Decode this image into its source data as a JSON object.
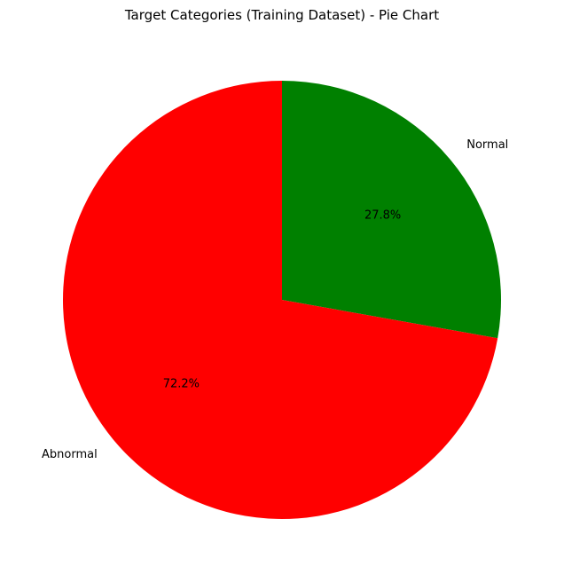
{
  "chart_data": {
    "type": "pie",
    "title": "Target Categories (Training Dataset) - Pie Chart",
    "start_angle_deg": 90,
    "direction": "clockwise",
    "slices": [
      {
        "label": "Normal",
        "value": 27.8,
        "pct_label": "27.8%",
        "color": "#008000"
      },
      {
        "label": "Abnormal",
        "value": 72.2,
        "pct_label": "72.2%",
        "color": "#ff0000"
      }
    ]
  }
}
